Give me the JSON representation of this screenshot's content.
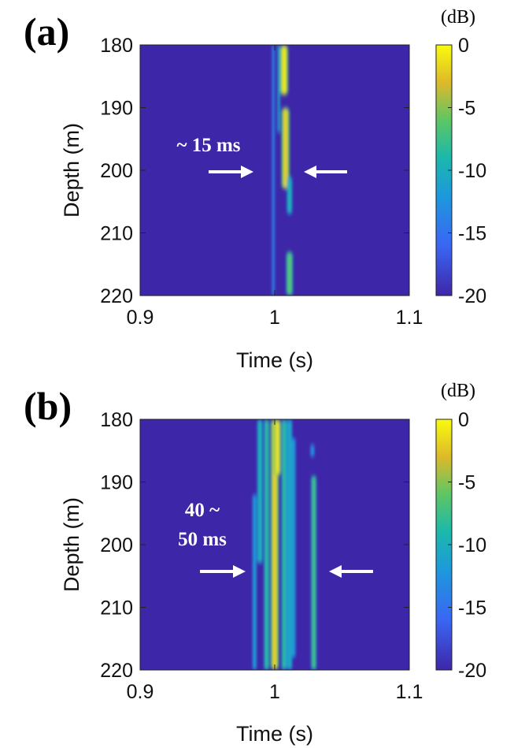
{
  "chart_data": [
    {
      "type": "heatmap",
      "panel_label": "(a)",
      "xlabel": "Time (s)",
      "ylabel": "Depth (m)",
      "xlim": [
        0.9,
        1.1
      ],
      "ylim": [
        180,
        220
      ],
      "x_ticks": [
        "0.9",
        "1",
        "1.1"
      ],
      "y_ticks": [
        "180",
        "190",
        "200",
        "210",
        "220"
      ],
      "colorbar": {
        "unit": "(dB)",
        "range": [
          -20,
          0
        ],
        "ticks": [
          "0",
          "-5",
          "-10",
          "-15",
          "-20"
        ]
      },
      "background_level": -20,
      "annotation": [
        "~ 15 ms"
      ],
      "streaks": [
        {
          "t_center": 0.999,
          "width_s": 0.002,
          "depth_start": 180,
          "depth_end": 220,
          "peak_db": -13
        },
        {
          "t_center": 1.003,
          "width_s": 0.002,
          "depth_start": 180,
          "depth_end": 194,
          "peak_db": -10
        },
        {
          "t_center": 1.007,
          "width_s": 0.006,
          "depth_start": 180,
          "depth_end": 188,
          "peak_db": -1
        },
        {
          "t_center": 1.008,
          "width_s": 0.006,
          "depth_start": 190,
          "depth_end": 203,
          "peak_db": -2
        },
        {
          "t_center": 1.011,
          "width_s": 0.004,
          "depth_start": 201,
          "depth_end": 207,
          "peak_db": -9
        },
        {
          "t_center": 1.011,
          "width_s": 0.005,
          "depth_start": 213,
          "depth_end": 220,
          "peak_db": -6
        }
      ]
    },
    {
      "type": "heatmap",
      "panel_label": "(b)",
      "xlabel": "Time (s)",
      "ylabel": "Depth (m)",
      "xlim": [
        0.9,
        1.1
      ],
      "ylim": [
        180,
        220
      ],
      "x_ticks": [
        "0.9",
        "1",
        "1.1"
      ],
      "y_ticks": [
        "180",
        "190",
        "200",
        "210",
        "220"
      ],
      "colorbar": {
        "unit": "(dB)",
        "range": [
          -20,
          0
        ],
        "ticks": [
          "0",
          "-5",
          "-10",
          "-15",
          "-20"
        ]
      },
      "background_level": -20,
      "annotation": [
        "40 ~",
        "50 ms"
      ],
      "streaks": [
        {
          "t_center": 0.985,
          "width_s": 0.003,
          "depth_start": 192,
          "depth_end": 220,
          "peak_db": -11
        },
        {
          "t_center": 0.989,
          "width_s": 0.004,
          "depth_start": 180,
          "depth_end": 203,
          "peak_db": -9
        },
        {
          "t_center": 0.994,
          "width_s": 0.004,
          "depth_start": 180,
          "depth_end": 220,
          "peak_db": -8
        },
        {
          "t_center": 1.0,
          "width_s": 0.006,
          "depth_start": 180,
          "depth_end": 220,
          "peak_db": -2
        },
        {
          "t_center": 1.002,
          "width_s": 0.005,
          "depth_start": 180,
          "depth_end": 189,
          "peak_db": -1
        },
        {
          "t_center": 1.007,
          "width_s": 0.004,
          "depth_start": 180,
          "depth_end": 220,
          "peak_db": -8
        },
        {
          "t_center": 1.011,
          "width_s": 0.004,
          "depth_start": 180,
          "depth_end": 220,
          "peak_db": -10
        },
        {
          "t_center": 1.014,
          "width_s": 0.003,
          "depth_start": 183,
          "depth_end": 218,
          "peak_db": -11
        },
        {
          "t_center": 1.028,
          "width_s": 0.003,
          "depth_start": 184,
          "depth_end": 186,
          "peak_db": -12
        },
        {
          "t_center": 1.029,
          "width_s": 0.004,
          "depth_start": 189,
          "depth_end": 220,
          "peak_db": -7
        }
      ]
    }
  ]
}
